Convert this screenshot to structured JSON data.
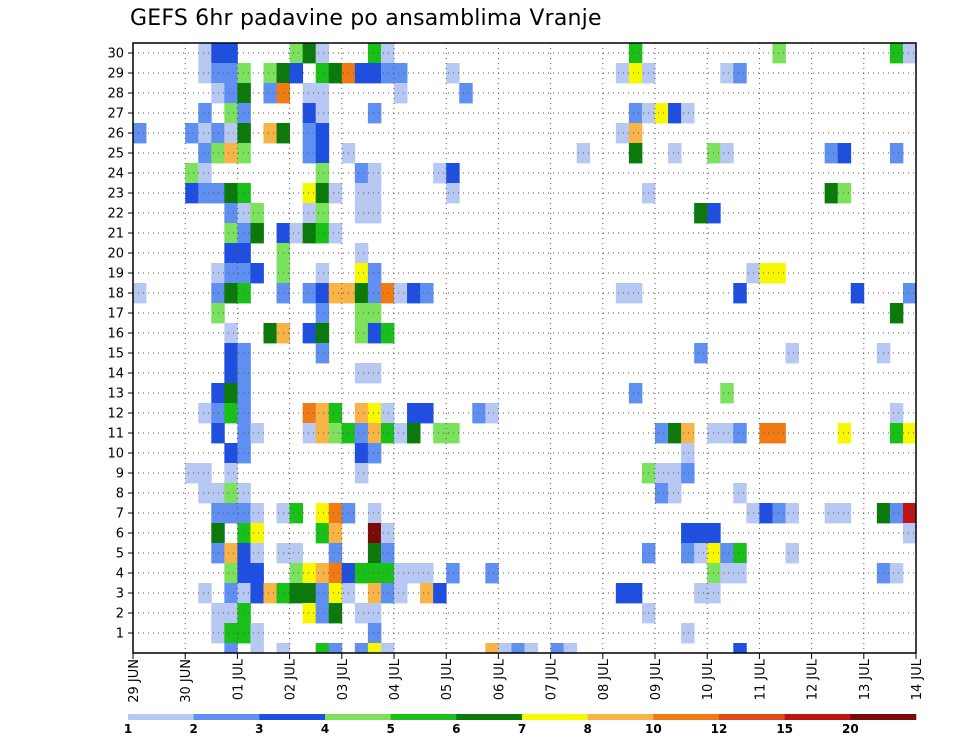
{
  "chart_data": {
    "type": "heatmap",
    "title": "GEFS 6hr padavine po ansamblima Vranje",
    "xlabel": "",
    "ylabel": "",
    "ensemble_members": [
      1,
      2,
      3,
      4,
      5,
      6,
      7,
      8,
      9,
      10,
      11,
      12,
      13,
      14,
      15,
      16,
      17,
      18,
      19,
      20,
      21,
      22,
      23,
      24,
      25,
      26,
      27,
      28,
      29,
      30
    ],
    "x_tick_labels": [
      "29 JUN",
      "30 JUN",
      "01 JUL",
      "02 JUL",
      "03 JUL",
      "04 JUL",
      "05 JUL",
      "06 JUL",
      "07 JUL",
      "08 JUL",
      "09 JUL",
      "10 JUL",
      "11 JUL",
      "12 JUL",
      "13 JUL",
      "14 JUL"
    ],
    "x_steps_per_day": 4,
    "x_range_steps": [
      0,
      60
    ],
    "colorbar": {
      "labels": [
        "1",
        "2",
        "3",
        "4",
        "5",
        "6",
        "7",
        "8",
        "10",
        "12",
        "15",
        "20"
      ],
      "colors": [
        "#b7c9f2",
        "#5f8ff0",
        "#1f4fe0",
        "#7ce25e",
        "#18c018",
        "#0b7a0b",
        "#f8f800",
        "#f8b446",
        "#f07a14",
        "#e04a14",
        "#c01414",
        "#7a0a0a"
      ]
    },
    "grid": "dotted",
    "cells": [
      [
        30,
        6,
        1
      ],
      [
        30,
        7,
        3
      ],
      [
        30,
        8,
        3
      ],
      [
        30,
        13,
        4
      ],
      [
        30,
        14,
        6
      ],
      [
        30,
        15,
        1
      ],
      [
        30,
        19,
        5
      ],
      [
        30,
        20,
        1
      ],
      [
        30,
        39,
        5
      ],
      [
        30,
        50,
        4
      ],
      [
        30,
        59,
        5
      ],
      [
        30,
        60,
        1
      ],
      [
        29,
        6,
        1
      ],
      [
        29,
        7,
        2
      ],
      [
        29,
        8,
        2
      ],
      [
        29,
        9,
        4
      ],
      [
        29,
        11,
        4
      ],
      [
        29,
        12,
        6
      ],
      [
        29,
        13,
        3
      ],
      [
        29,
        15,
        5
      ],
      [
        29,
        16,
        6
      ],
      [
        29,
        17,
        9
      ],
      [
        29,
        18,
        3
      ],
      [
        29,
        19,
        3
      ],
      [
        29,
        20,
        2
      ],
      [
        29,
        21,
        2
      ],
      [
        29,
        25,
        1
      ],
      [
        29,
        38,
        1
      ],
      [
        29,
        39,
        7
      ],
      [
        29,
        40,
        1
      ],
      [
        29,
        46,
        1
      ],
      [
        29,
        47,
        2
      ],
      [
        28,
        7,
        1
      ],
      [
        28,
        8,
        2
      ],
      [
        28,
        9,
        6
      ],
      [
        28,
        11,
        2
      ],
      [
        28,
        12,
        9
      ],
      [
        28,
        14,
        1
      ],
      [
        28,
        15,
        1
      ],
      [
        28,
        21,
        1
      ],
      [
        28,
        26,
        2
      ],
      [
        27,
        6,
        2
      ],
      [
        27,
        8,
        4
      ],
      [
        27,
        9,
        2
      ],
      [
        27,
        14,
        3
      ],
      [
        27,
        15,
        1
      ],
      [
        27,
        19,
        2
      ],
      [
        27,
        39,
        2
      ],
      [
        27,
        40,
        1
      ],
      [
        27,
        41,
        7
      ],
      [
        27,
        42,
        3
      ],
      [
        27,
        43,
        1
      ],
      [
        26,
        1,
        2
      ],
      [
        26,
        5,
        2
      ],
      [
        26,
        6,
        1
      ],
      [
        26,
        7,
        2
      ],
      [
        26,
        8,
        1
      ],
      [
        26,
        9,
        6
      ],
      [
        26,
        11,
        8
      ],
      [
        26,
        12,
        6
      ],
      [
        26,
        14,
        2
      ],
      [
        26,
        15,
        3
      ],
      [
        26,
        38,
        1
      ],
      [
        26,
        39,
        8
      ],
      [
        25,
        6,
        2
      ],
      [
        25,
        7,
        4
      ],
      [
        25,
        8,
        8
      ],
      [
        25,
        9,
        4
      ],
      [
        25,
        14,
        2
      ],
      [
        25,
        15,
        3
      ],
      [
        25,
        17,
        1
      ],
      [
        25,
        35,
        1
      ],
      [
        25,
        39,
        6
      ],
      [
        25,
        42,
        1
      ],
      [
        25,
        45,
        4
      ],
      [
        25,
        46,
        1
      ],
      [
        25,
        54,
        2
      ],
      [
        25,
        55,
        3
      ],
      [
        25,
        59,
        2
      ],
      [
        24,
        5,
        4
      ],
      [
        24,
        6,
        1
      ],
      [
        24,
        15,
        4
      ],
      [
        24,
        18,
        2
      ],
      [
        24,
        19,
        1
      ],
      [
        24,
        24,
        1
      ],
      [
        24,
        25,
        3
      ],
      [
        23,
        5,
        3
      ],
      [
        23,
        6,
        2
      ],
      [
        23,
        7,
        2
      ],
      [
        23,
        8,
        6
      ],
      [
        23,
        9,
        5
      ],
      [
        23,
        14,
        7
      ],
      [
        23,
        15,
        6
      ],
      [
        23,
        16,
        1
      ],
      [
        23,
        18,
        1
      ],
      [
        23,
        19,
        1
      ],
      [
        23,
        25,
        1
      ],
      [
        23,
        40,
        1
      ],
      [
        23,
        54,
        6
      ],
      [
        23,
        55,
        4
      ],
      [
        22,
        8,
        2
      ],
      [
        22,
        9,
        1
      ],
      [
        22,
        10,
        4
      ],
      [
        22,
        14,
        1
      ],
      [
        22,
        15,
        4
      ],
      [
        22,
        18,
        1
      ],
      [
        22,
        19,
        1
      ],
      [
        22,
        44,
        6
      ],
      [
        22,
        45,
        3
      ],
      [
        21,
        8,
        4
      ],
      [
        21,
        9,
        2
      ],
      [
        21,
        10,
        6
      ],
      [
        21,
        12,
        3
      ],
      [
        21,
        13,
        1
      ],
      [
        21,
        14,
        6
      ],
      [
        21,
        15,
        5
      ],
      [
        21,
        16,
        1
      ],
      [
        20,
        8,
        3
      ],
      [
        20,
        9,
        3
      ],
      [
        20,
        12,
        4
      ],
      [
        20,
        18,
        1
      ],
      [
        19,
        7,
        1
      ],
      [
        19,
        8,
        2
      ],
      [
        19,
        9,
        2
      ],
      [
        19,
        10,
        3
      ],
      [
        19,
        12,
        4
      ],
      [
        19,
        15,
        1
      ],
      [
        19,
        18,
        7
      ],
      [
        19,
        19,
        2
      ],
      [
        19,
        48,
        1
      ],
      [
        19,
        49,
        7
      ],
      [
        19,
        50,
        7
      ],
      [
        18,
        1,
        1
      ],
      [
        18,
        7,
        2
      ],
      [
        18,
        8,
        6
      ],
      [
        18,
        9,
        5
      ],
      [
        18,
        12,
        2
      ],
      [
        18,
        14,
        2
      ],
      [
        18,
        15,
        3
      ],
      [
        18,
        16,
        8
      ],
      [
        18,
        17,
        8
      ],
      [
        18,
        18,
        6
      ],
      [
        18,
        19,
        2
      ],
      [
        18,
        20,
        9
      ],
      [
        18,
        21,
        1
      ],
      [
        18,
        22,
        3
      ],
      [
        18,
        23,
        2
      ],
      [
        18,
        38,
        1
      ],
      [
        18,
        39,
        1
      ],
      [
        18,
        47,
        3
      ],
      [
        18,
        56,
        3
      ],
      [
        18,
        60,
        2
      ],
      [
        17,
        7,
        4
      ],
      [
        17,
        15,
        2
      ],
      [
        17,
        18,
        4
      ],
      [
        17,
        19,
        4
      ],
      [
        17,
        59,
        6
      ],
      [
        16,
        8,
        1
      ],
      [
        16,
        11,
        6
      ],
      [
        16,
        12,
        8
      ],
      [
        16,
        14,
        3
      ],
      [
        16,
        15,
        6
      ],
      [
        16,
        18,
        4
      ],
      [
        16,
        19,
        3
      ],
      [
        16,
        20,
        5
      ],
      [
        15,
        8,
        3
      ],
      [
        15,
        9,
        2
      ],
      [
        15,
        15,
        2
      ],
      [
        15,
        44,
        2
      ],
      [
        15,
        51,
        1
      ],
      [
        15,
        58,
        1
      ],
      [
        14,
        8,
        3
      ],
      [
        14,
        9,
        2
      ],
      [
        14,
        18,
        1
      ],
      [
        14,
        19,
        1
      ],
      [
        13,
        7,
        3
      ],
      [
        13,
        8,
        6
      ],
      [
        13,
        9,
        2
      ],
      [
        13,
        39,
        2
      ],
      [
        13,
        46,
        4
      ],
      [
        12,
        6,
        1
      ],
      [
        12,
        7,
        2
      ],
      [
        12,
        8,
        5
      ],
      [
        12,
        9,
        2
      ],
      [
        12,
        14,
        9
      ],
      [
        12,
        15,
        8
      ],
      [
        12,
        16,
        5
      ],
      [
        12,
        18,
        8
      ],
      [
        12,
        19,
        7
      ],
      [
        12,
        20,
        1
      ],
      [
        12,
        22,
        3
      ],
      [
        12,
        23,
        3
      ],
      [
        12,
        27,
        2
      ],
      [
        12,
        28,
        1
      ],
      [
        12,
        59,
        1
      ],
      [
        11,
        7,
        3
      ],
      [
        11,
        9,
        2
      ],
      [
        11,
        10,
        1
      ],
      [
        11,
        14,
        1
      ],
      [
        11,
        15,
        8
      ],
      [
        11,
        16,
        4
      ],
      [
        11,
        17,
        5
      ],
      [
        11,
        18,
        2
      ],
      [
        11,
        19,
        8
      ],
      [
        11,
        20,
        5
      ],
      [
        11,
        21,
        1
      ],
      [
        11,
        22,
        6
      ],
      [
        11,
        24,
        4
      ],
      [
        11,
        25,
        4
      ],
      [
        11,
        41,
        2
      ],
      [
        11,
        42,
        6
      ],
      [
        11,
        43,
        8
      ],
      [
        11,
        45,
        1
      ],
      [
        11,
        46,
        1
      ],
      [
        11,
        47,
        2
      ],
      [
        11,
        49,
        9
      ],
      [
        11,
        50,
        9
      ],
      [
        11,
        55,
        7
      ],
      [
        11,
        59,
        5
      ],
      [
        11,
        60,
        7
      ],
      [
        10,
        8,
        3
      ],
      [
        10,
        9,
        2
      ],
      [
        10,
        18,
        3
      ],
      [
        10,
        19,
        2
      ],
      [
        10,
        43,
        1
      ],
      [
        9,
        5,
        1
      ],
      [
        9,
        6,
        1
      ],
      [
        9,
        8,
        1
      ],
      [
        9,
        18,
        1
      ],
      [
        9,
        40,
        4
      ],
      [
        9,
        41,
        1
      ],
      [
        9,
        42,
        1
      ],
      [
        9,
        43,
        2
      ],
      [
        8,
        6,
        1
      ],
      [
        8,
        7,
        1
      ],
      [
        8,
        8,
        4
      ],
      [
        8,
        9,
        1
      ],
      [
        8,
        41,
        2
      ],
      [
        8,
        42,
        1
      ],
      [
        8,
        47,
        1
      ],
      [
        7,
        7,
        2
      ],
      [
        7,
        8,
        2
      ],
      [
        7,
        9,
        2
      ],
      [
        7,
        10,
        1
      ],
      [
        7,
        12,
        1
      ],
      [
        7,
        13,
        5
      ],
      [
        7,
        15,
        7
      ],
      [
        7,
        16,
        9
      ],
      [
        7,
        17,
        2
      ],
      [
        7,
        19,
        1
      ],
      [
        7,
        48,
        1
      ],
      [
        7,
        49,
        3
      ],
      [
        7,
        50,
        2
      ],
      [
        7,
        51,
        1
      ],
      [
        7,
        54,
        1
      ],
      [
        7,
        55,
        1
      ],
      [
        7,
        58,
        6
      ],
      [
        7,
        59,
        2
      ],
      [
        7,
        60,
        11
      ],
      [
        6,
        7,
        6
      ],
      [
        6,
        9,
        5
      ],
      [
        6,
        10,
        7
      ],
      [
        6,
        15,
        5
      ],
      [
        6,
        16,
        8
      ],
      [
        6,
        19,
        12
      ],
      [
        6,
        20,
        1
      ],
      [
        6,
        43,
        3
      ],
      [
        6,
        44,
        3
      ],
      [
        6,
        45,
        3
      ],
      [
        6,
        60,
        1
      ],
      [
        5,
        7,
        2
      ],
      [
        5,
        8,
        8
      ],
      [
        5,
        9,
        3
      ],
      [
        5,
        10,
        1
      ],
      [
        5,
        12,
        1
      ],
      [
        5,
        13,
        1
      ],
      [
        5,
        16,
        2
      ],
      [
        5,
        19,
        6
      ],
      [
        5,
        20,
        2
      ],
      [
        5,
        40,
        2
      ],
      [
        5,
        43,
        2
      ],
      [
        5,
        44,
        1
      ],
      [
        5,
        45,
        7
      ],
      [
        5,
        46,
        2
      ],
      [
        5,
        47,
        5
      ],
      [
        5,
        51,
        1
      ],
      [
        4,
        8,
        4
      ],
      [
        4,
        9,
        3
      ],
      [
        4,
        10,
        3
      ],
      [
        4,
        13,
        4
      ],
      [
        4,
        14,
        7
      ],
      [
        4,
        15,
        8
      ],
      [
        4,
        16,
        9
      ],
      [
        4,
        17,
        3
      ],
      [
        4,
        18,
        5
      ],
      [
        4,
        19,
        5
      ],
      [
        4,
        20,
        5
      ],
      [
        4,
        21,
        1
      ],
      [
        4,
        22,
        1
      ],
      [
        4,
        23,
        1
      ],
      [
        4,
        25,
        2
      ],
      [
        4,
        28,
        2
      ],
      [
        4,
        45,
        4
      ],
      [
        4,
        46,
        1
      ],
      [
        4,
        47,
        1
      ],
      [
        4,
        58,
        2
      ],
      [
        4,
        59,
        1
      ],
      [
        3,
        6,
        1
      ],
      [
        3,
        8,
        2
      ],
      [
        3,
        9,
        1
      ],
      [
        3,
        10,
        3
      ],
      [
        3,
        11,
        8
      ],
      [
        3,
        12,
        5
      ],
      [
        3,
        13,
        6
      ],
      [
        3,
        14,
        6
      ],
      [
        3,
        15,
        2
      ],
      [
        3,
        16,
        7
      ],
      [
        3,
        17,
        1
      ],
      [
        3,
        19,
        8
      ],
      [
        3,
        20,
        2
      ],
      [
        3,
        21,
        1
      ],
      [
        3,
        23,
        8
      ],
      [
        3,
        24,
        3
      ],
      [
        3,
        38,
        3
      ],
      [
        3,
        39,
        3
      ],
      [
        3,
        44,
        1
      ],
      [
        3,
        45,
        1
      ],
      [
        2,
        7,
        1
      ],
      [
        2,
        8,
        1
      ],
      [
        2,
        9,
        5
      ],
      [
        2,
        14,
        7
      ],
      [
        2,
        15,
        2
      ],
      [
        2,
        16,
        6
      ],
      [
        2,
        18,
        1
      ],
      [
        2,
        19,
        1
      ],
      [
        2,
        40,
        1
      ],
      [
        1,
        7,
        1
      ],
      [
        1,
        8,
        5
      ],
      [
        1,
        9,
        5
      ],
      [
        1,
        10,
        1
      ],
      [
        1,
        19,
        2
      ],
      [
        1,
        43,
        1
      ]
    ],
    "bottom_row_cells": [
      [
        8,
        2
      ],
      [
        10,
        1
      ],
      [
        12,
        1
      ],
      [
        15,
        5
      ],
      [
        16,
        2
      ],
      [
        18,
        2
      ],
      [
        19,
        7
      ],
      [
        20,
        1
      ],
      [
        28,
        8
      ],
      [
        29,
        1
      ],
      [
        30,
        2
      ],
      [
        31,
        1
      ],
      [
        33,
        2
      ],
      [
        34,
        1
      ],
      [
        47,
        3
      ]
    ]
  }
}
